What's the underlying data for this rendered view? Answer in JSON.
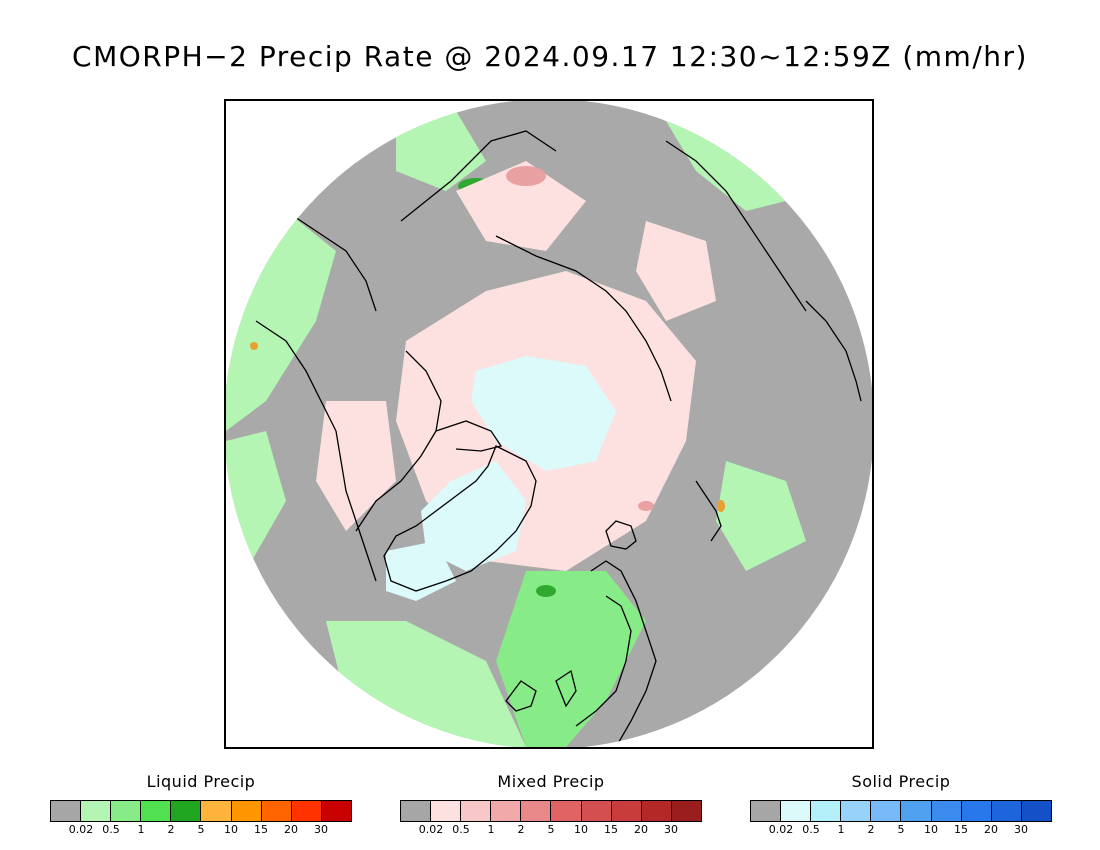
{
  "title": "CMORPH−2 Precip Rate @ 2024.09.17 12:30~12:59Z (mm/hr)",
  "map": {
    "projection": "north-polar-stereographic",
    "colors": {
      "no_precip": "#a9a9a9",
      "ocean_bg": "#ffffff",
      "liquid_light": "#b4f5b4",
      "liquid_mid": "#87eb87",
      "liquid_strong": "#2fa92f",
      "liquid_heavy": "#e8a030",
      "mixed_light": "#fde1e1",
      "mixed_mid": "#e8a0a0",
      "solid_light": "#dcfafa",
      "coastline": "#000000"
    }
  },
  "legends": [
    {
      "title": "Liquid Precip",
      "colors": [
        "#a6a6a6",
        "#b4f5b4",
        "#87eb87",
        "#50e050",
        "#1fa51f",
        "#ffb43c",
        "#ff9600",
        "#ff6400",
        "#ff3200",
        "#c80000"
      ],
      "ticks": [
        "0.02",
        "0.5",
        "1",
        "2",
        "5",
        "10",
        "15",
        "20",
        "30"
      ]
    },
    {
      "title": "Mixed Precip",
      "colors": [
        "#a6a6a6",
        "#fde1e1",
        "#f8c8c8",
        "#f0a8a8",
        "#e88888",
        "#e06464",
        "#d45050",
        "#c83c3c",
        "#b42828",
        "#9b1e1e"
      ],
      "ticks": [
        "0.02",
        "0.5",
        "1",
        "2",
        "5",
        "10",
        "15",
        "20",
        "30"
      ]
    },
    {
      "title": "Solid Precip",
      "colors": [
        "#a6a6a6",
        "#dcfafa",
        "#b4f0fa",
        "#96d2fa",
        "#78b9fa",
        "#50a0f0",
        "#3c8cf0",
        "#2878eb",
        "#1e64dc",
        "#1450c8"
      ],
      "ticks": [
        "0.02",
        "0.5",
        "1",
        "2",
        "5",
        "10",
        "15",
        "20",
        "30"
      ]
    }
  ]
}
